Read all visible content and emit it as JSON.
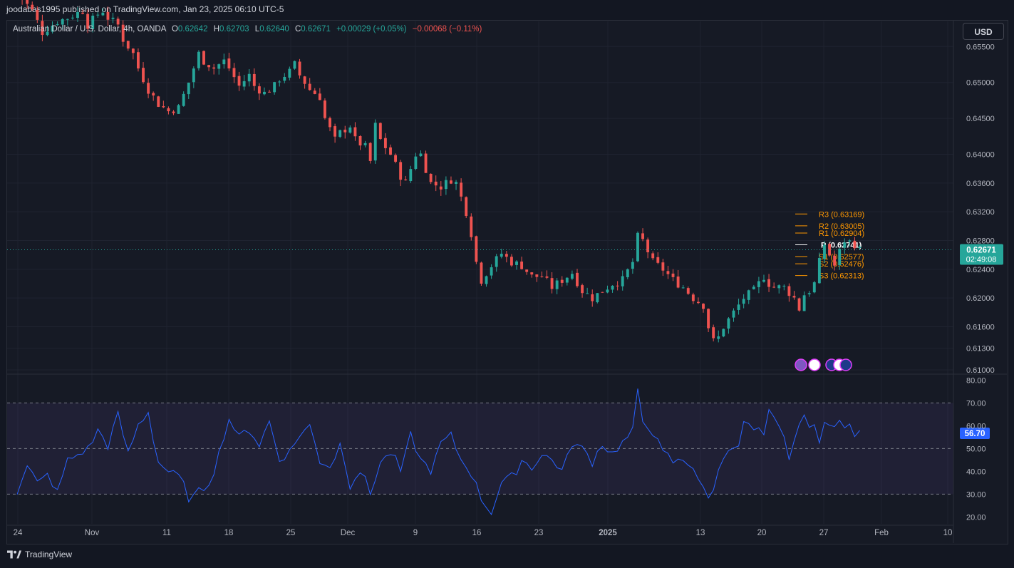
{
  "header": {
    "publisher": "joodabas1995 published on TradingView.com, Jan 23, 2025 06:10 UTC-5"
  },
  "legend": {
    "symbol": "Australian Dollar / U.S. Dollar, 4h, OANDA",
    "o_label": "O",
    "o_value": "0.62642",
    "h_label": "H",
    "h_value": "0.62703",
    "l_label": "L",
    "l_value": "0.62640",
    "c_label": "C",
    "c_value": "0.62671",
    "change": "+0.00029 (+0.05%)",
    "change2": "−0.00068 (−0.11%)"
  },
  "toolbar": {
    "currency": "USD"
  },
  "footer": {
    "brand": "TradingView"
  },
  "colors": {
    "up": "#26a69a",
    "down": "#ef5350",
    "rsi": "#2962ff",
    "pivot_lines": "#ff9800",
    "pivot_p": "#ffffff",
    "background": "#161a25",
    "grid": "#1f2330"
  },
  "chart_data": {
    "type": "candlestick",
    "price_scale": {
      "ticks": [
        "0.65500",
        "0.65000",
        "0.64500",
        "0.64000",
        "0.63600",
        "0.63200",
        "0.62800",
        "0.62400",
        "0.62000",
        "0.61600",
        "0.61300",
        "0.61000"
      ],
      "ylim": [
        0.6095,
        0.6585
      ]
    },
    "time_axis": {
      "ticks": [
        "24",
        "Nov",
        "11",
        "18",
        "25",
        "Dec",
        "9",
        "16",
        "23",
        "2025",
        "13",
        "20",
        "27",
        "Feb",
        "10"
      ]
    },
    "last_price": {
      "value": "0.62671",
      "countdown": "02:49:08"
    },
    "pivots": [
      {
        "label": "R3 (0.63169)",
        "value": 0.63169
      },
      {
        "label": "R2 (0.63005)",
        "value": 0.63005
      },
      {
        "label": "R1 (0.62904)",
        "value": 0.62904
      },
      {
        "label": "P (0.62741)",
        "value": 0.62741
      },
      {
        "label": "S1 (0.62577)",
        "value": 0.62577
      },
      {
        "label": "S2 (0.62476)",
        "value": 0.62476
      },
      {
        "label": "S3 (0.62313)",
        "value": 0.62313
      }
    ],
    "price_path": [
      [
        0,
        0.6625
      ],
      [
        3,
        0.66
      ],
      [
        5,
        0.657
      ],
      [
        8,
        0.6585
      ],
      [
        10,
        0.659
      ],
      [
        13,
        0.66
      ],
      [
        14,
        0.658
      ],
      [
        16,
        0.6595
      ],
      [
        17,
        0.66
      ],
      [
        18,
        0.659
      ],
      [
        20,
        0.658
      ],
      [
        21,
        0.656
      ],
      [
        23,
        0.654
      ],
      [
        24,
        0.652
      ],
      [
        26,
        0.649
      ],
      [
        28,
        0.647
      ],
      [
        30,
        0.646
      ],
      [
        32,
        0.6465
      ],
      [
        34,
        0.65
      ],
      [
        36,
        0.654
      ],
      [
        37,
        0.653
      ],
      [
        39,
        0.652
      ],
      [
        41,
        0.653
      ],
      [
        42,
        0.652
      ],
      [
        44,
        0.6495
      ],
      [
        46,
        0.651
      ],
      [
        47,
        0.6495
      ],
      [
        49,
        0.6485
      ],
      [
        51,
        0.6495
      ],
      [
        52,
        0.6505
      ],
      [
        54,
        0.6515
      ],
      [
        55,
        0.6525
      ],
      [
        56,
        0.651
      ],
      [
        58,
        0.649
      ],
      [
        60,
        0.648
      ],
      [
        61,
        0.645
      ],
      [
        63,
        0.642
      ],
      [
        64,
        0.643
      ],
      [
        66,
        0.644
      ],
      [
        67,
        0.642
      ],
      [
        69,
        0.641
      ],
      [
        70,
        0.639
      ],
      [
        71,
        0.644
      ],
      [
        72,
        0.642
      ],
      [
        74,
        0.64
      ],
      [
        76,
        0.637
      ],
      [
        77,
        0.636
      ],
      [
        79,
        0.64
      ],
      [
        80,
        0.64
      ],
      [
        82,
        0.636
      ],
      [
        84,
        0.6355
      ],
      [
        86,
        0.6365
      ],
      [
        87,
        0.636
      ],
      [
        89,
        0.632
      ],
      [
        90,
        0.629
      ],
      [
        91,
        0.625
      ],
      [
        92,
        0.6225
      ],
      [
        94,
        0.6245
      ],
      [
        96,
        0.6262
      ],
      [
        98,
        0.625
      ],
      [
        100,
        0.6245
      ],
      [
        102,
        0.623
      ],
      [
        104,
        0.623
      ],
      [
        106,
        0.6215
      ],
      [
        108,
        0.6225
      ],
      [
        110,
        0.6235
      ],
      [
        112,
        0.621
      ],
      [
        114,
        0.62
      ],
      [
        116,
        0.621
      ],
      [
        118,
        0.622
      ],
      [
        120,
        0.6225
      ],
      [
        122,
        0.625
      ],
      [
        123,
        0.6285
      ],
      [
        124,
        0.628
      ],
      [
        126,
        0.625
      ],
      [
        128,
        0.624
      ],
      [
        130,
        0.6225
      ],
      [
        132,
        0.6215
      ],
      [
        134,
        0.62
      ],
      [
        136,
        0.619
      ],
      [
        137,
        0.616
      ],
      [
        138,
        0.614
      ],
      [
        139,
        0.6145
      ],
      [
        140,
        0.616
      ],
      [
        142,
        0.618
      ],
      [
        144,
        0.62
      ],
      [
        146,
        0.621
      ],
      [
        148,
        0.623
      ],
      [
        149,
        0.622
      ],
      [
        150,
        0.6215
      ],
      [
        152,
        0.6215
      ],
      [
        154,
        0.62
      ],
      [
        155,
        0.6185
      ],
      [
        156,
        0.6205
      ],
      [
        157,
        0.621
      ],
      [
        158,
        0.622
      ],
      [
        159,
        0.625
      ],
      [
        160,
        0.6275
      ],
      [
        161,
        0.626
      ],
      [
        162,
        0.6245
      ],
      [
        163,
        0.6265
      ],
      [
        164,
        0.628
      ],
      [
        165,
        0.6278
      ],
      [
        166,
        0.6275
      ],
      [
        167,
        0.6267
      ]
    ],
    "rsi": {
      "name": "",
      "value_label": "56.70",
      "ticks": [
        "80.00",
        "70.00",
        "60.00",
        "50.00",
        "40.00",
        "30.00",
        "20.00"
      ],
      "ylim": [
        17,
        82
      ],
      "bands": [
        30,
        50,
        70
      ],
      "path": [
        [
          0,
          32
        ],
        [
          2,
          42
        ],
        [
          4,
          35
        ],
        [
          6,
          38
        ],
        [
          8,
          31
        ],
        [
          10,
          45
        ],
        [
          12,
          47
        ],
        [
          14,
          50
        ],
        [
          16,
          58
        ],
        [
          18,
          52
        ],
        [
          20,
          65
        ],
        [
          22,
          48
        ],
        [
          24,
          60
        ],
        [
          26,
          66
        ],
        [
          28,
          44
        ],
        [
          30,
          40
        ],
        [
          32,
          38
        ],
        [
          34,
          28
        ],
        [
          36,
          30
        ],
        [
          38,
          35
        ],
        [
          40,
          48
        ],
        [
          42,
          63
        ],
        [
          44,
          55
        ],
        [
          46,
          58
        ],
        [
          48,
          52
        ],
        [
          50,
          62
        ],
        [
          52,
          45
        ],
        [
          54,
          48
        ],
        [
          56,
          56
        ],
        [
          58,
          60
        ],
        [
          60,
          45
        ],
        [
          62,
          42
        ],
        [
          64,
          52
        ],
        [
          66,
          35
        ],
        [
          68,
          40
        ],
        [
          70,
          30
        ],
        [
          72,
          44
        ],
        [
          74,
          48
        ],
        [
          76,
          40
        ],
        [
          78,
          55
        ],
        [
          80,
          45
        ],
        [
          82,
          40
        ],
        [
          84,
          52
        ],
        [
          86,
          56
        ],
        [
          88,
          45
        ],
        [
          90,
          40
        ],
        [
          92,
          28
        ],
        [
          94,
          22
        ],
        [
          96,
          35
        ],
        [
          98,
          38
        ],
        [
          100,
          45
        ],
        [
          102,
          42
        ],
        [
          104,
          47
        ],
        [
          106,
          45
        ],
        [
          108,
          40
        ],
        [
          110,
          52
        ],
        [
          112,
          50
        ],
        [
          114,
          45
        ],
        [
          116,
          52
        ],
        [
          118,
          48
        ],
        [
          120,
          52
        ],
        [
          122,
          58
        ],
        [
          123,
          74
        ],
        [
          124,
          62
        ],
        [
          126,
          58
        ],
        [
          128,
          48
        ],
        [
          130,
          44
        ],
        [
          132,
          45
        ],
        [
          134,
          42
        ],
        [
          136,
          32
        ],
        [
          137,
          28
        ],
        [
          139,
          40
        ],
        [
          141,
          52
        ],
        [
          143,
          50
        ],
        [
          144,
          62
        ],
        [
          146,
          58
        ],
        [
          148,
          55
        ],
        [
          149,
          66
        ],
        [
          150,
          62
        ],
        [
          152,
          56
        ],
        [
          153,
          45
        ],
        [
          154,
          52
        ],
        [
          155,
          62
        ],
        [
          156,
          65
        ],
        [
          157,
          58
        ],
        [
          158,
          60
        ],
        [
          159,
          55
        ],
        [
          160,
          63
        ],
        [
          161,
          60
        ],
        [
          162,
          58
        ],
        [
          163,
          62
        ],
        [
          164,
          60
        ],
        [
          165,
          58
        ],
        [
          166,
          56
        ],
        [
          167,
          56.7
        ]
      ]
    },
    "event_icons": [
      "flash-event",
      "us-flag",
      "au-flag",
      "us-flag",
      "globe"
    ]
  }
}
